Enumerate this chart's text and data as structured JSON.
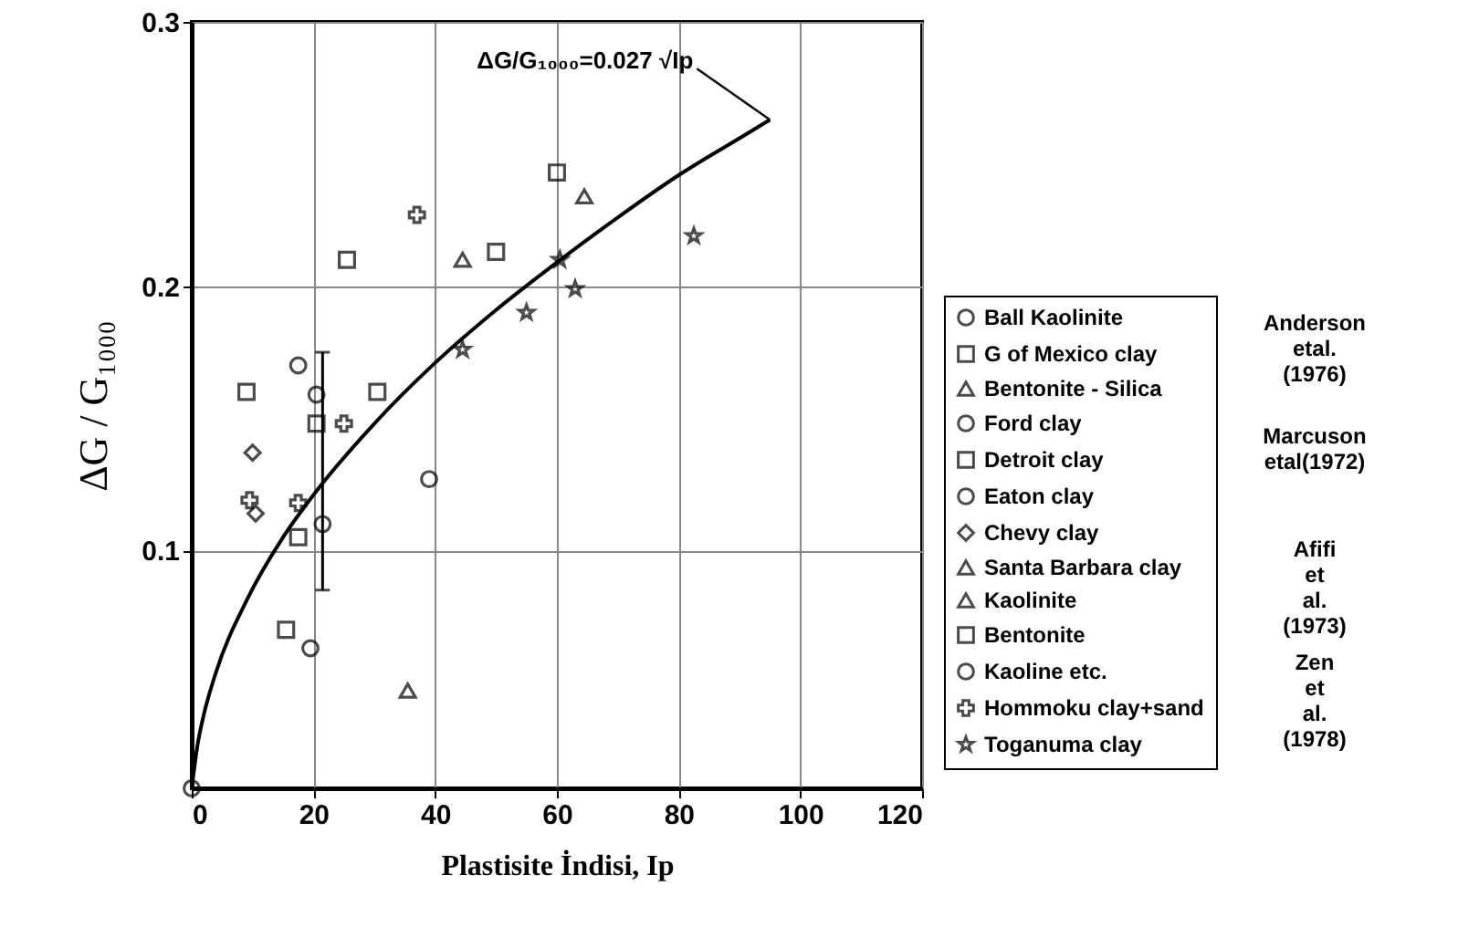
{
  "chart_data": {
    "type": "scatter",
    "xlabel": "Plastisite İndisi, Ip",
    "ylabel": "ΔG / G₁₀₀₀",
    "xlim": [
      0,
      120
    ],
    "xticks": [
      0,
      20,
      40,
      60,
      80,
      100,
      120
    ],
    "ylim": [
      0.01,
      0.3
    ],
    "yticks": [
      0.1,
      0.2,
      0.3
    ],
    "grid": true,
    "legend": "right",
    "annotations": [
      {
        "text": "ΔG/G₁₀₀₀=0.027 √Ip",
        "x": 95,
        "y": 0.263
      },
      "Anderson etal. (1976)",
      "Marcuson etal(1972)",
      "Afifi et al. (1973)",
      "Zen et al. (1978)"
    ],
    "series": [
      {
        "name": "Ball Kaolinite",
        "color": "#000000",
        "marker": "circle",
        "x": [
          19.5,
          39
        ],
        "values": [
          0.063,
          0.127
        ]
      },
      {
        "name": "G of Mexico clay",
        "color": "#000000",
        "marker": "square",
        "x": [
          50,
          9
        ],
        "values": [
          0.213,
          0.16
        ]
      },
      {
        "name": "Bentonite - Silica",
        "color": "#000000",
        "marker": "triangle",
        "x": [
          64.5
        ],
        "values": [
          0.234
        ]
      },
      {
        "name": "Ford clay",
        "color": "#000000",
        "marker": "circle",
        "x": [
          0
        ],
        "values": [
          0.01
        ]
      },
      {
        "name": "Detroit clay",
        "color": "#000000",
        "marker": "square",
        "x": [
          20.5,
          30.5,
          15.5
        ],
        "values": [
          0.148,
          0.16,
          0.07
        ]
      },
      {
        "name": "Eaton clay",
        "color": "#000000",
        "marker": "circle",
        "x": [
          20.5,
          17.5
        ],
        "values": [
          0.159,
          0.17
        ]
      },
      {
        "name": "Chevy clay",
        "color": "#000000",
        "marker": "diamond",
        "x": [
          10,
          10.5
        ],
        "values": [
          0.137,
          0.114
        ]
      },
      {
        "name": "Santa Barbara clay",
        "color": "#000000",
        "marker": "triangle",
        "x": [
          35.5
        ],
        "values": [
          0.047
        ]
      },
      {
        "name": "Kaolinite",
        "color": "#000000",
        "marker": "triangle",
        "x": [
          44.5
        ],
        "values": [
          0.21
        ]
      },
      {
        "name": "Bentonite",
        "color": "#000000",
        "marker": "square",
        "x": [
          25.5,
          60,
          17.5
        ],
        "values": [
          0.21,
          0.243,
          0.105
        ]
      },
      {
        "name": "Kaoline etc.",
        "color": "#000000",
        "marker": "circle",
        "x": [
          21.5
        ],
        "values": [
          0.11
        ],
        "errors": [
          [
            0.085,
            0.175
          ]
        ]
      },
      {
        "name": "Hommoku clay+sand",
        "color": "#000000",
        "marker": "cross",
        "x": [
          37,
          25,
          9.5,
          17.5
        ],
        "values": [
          0.227,
          0.148,
          0.119,
          0.118
        ]
      },
      {
        "name": "Toganuma clay",
        "color": "#000000",
        "marker": "star",
        "x": [
          44.5,
          55,
          60.5,
          63,
          82.5
        ],
        "values": [
          0.176,
          0.19,
          0.21,
          0.199,
          0.219
        ]
      },
      {
        "type": "line",
        "color": "#000000",
        "line_style": "solid",
        "x": [
          0,
          1,
          2,
          4,
          9,
          15,
          20,
          30,
          40,
          50,
          60,
          70,
          80,
          90,
          95
        ],
        "values": [
          0.01,
          0.027,
          0.038,
          0.054,
          0.081,
          0.105,
          0.121,
          0.148,
          0.171,
          0.191,
          0.209,
          0.226,
          0.242,
          0.256,
          0.263
        ]
      }
    ]
  }
}
